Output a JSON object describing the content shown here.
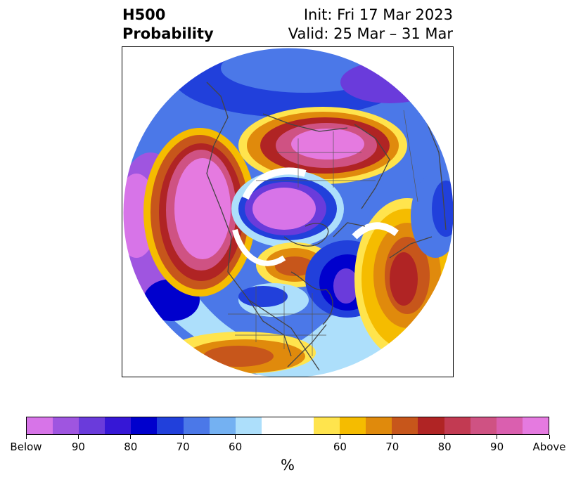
{
  "title": {
    "left_line1": "H500",
    "left_line2": "Probability",
    "init": "Init: Fri 17 Mar 2023",
    "valid": "Valid: 25 Mar – 31 Mar"
  },
  "map": {
    "projection": "north-polar-stereographic",
    "field": "500 hPa height anomaly probability",
    "features": [
      {
        "name": "positive-anomaly-eastern-pacific-alaska",
        "category": "Above",
        "peak_percent": 90
      },
      {
        "name": "positive-anomaly-northern-eurasia",
        "category": "Above",
        "peak_percent": 90
      },
      {
        "name": "positive-anomaly-north-atlantic",
        "category": "Above",
        "peak_percent": 80
      },
      {
        "name": "positive-anomaly-hudson-bay-canada",
        "category": "Above",
        "peak_percent": 75
      },
      {
        "name": "positive-anomaly-southwest-us-mexico",
        "category": "Above",
        "peak_percent": 75
      },
      {
        "name": "negative-anomaly-arctic-ocean",
        "category": "Below",
        "peak_percent": 95
      },
      {
        "name": "negative-anomaly-north-pacific",
        "category": "Below",
        "peak_percent": 90
      },
      {
        "name": "negative-anomaly-greenland-labrador",
        "category": "Below",
        "peak_percent": 85
      },
      {
        "name": "negative-anomaly-central-us",
        "category": "Below",
        "peak_percent": 80
      },
      {
        "name": "negative-anomaly-western-europe",
        "category": "Below",
        "peak_percent": 75
      }
    ]
  },
  "colorbar": {
    "colors": [
      "#d774e8",
      "#9f55e0",
      "#6a3bdb",
      "#3617d6",
      "#0000cd",
      "#2140db",
      "#4b78e8",
      "#74b1f2",
      "#addffb",
      "#ffffff",
      "#ffffff",
      "#ffe44d",
      "#f5bc00",
      "#e08a0c",
      "#c7561b",
      "#b02424",
      "#c23a52",
      "#cf5283",
      "#da5faf",
      "#e57ae0"
    ],
    "tick_labels": [
      "Below",
      "90",
      "80",
      "70",
      "60",
      "60",
      "70",
      "80",
      "90",
      "Above"
    ],
    "unit": "%"
  }
}
